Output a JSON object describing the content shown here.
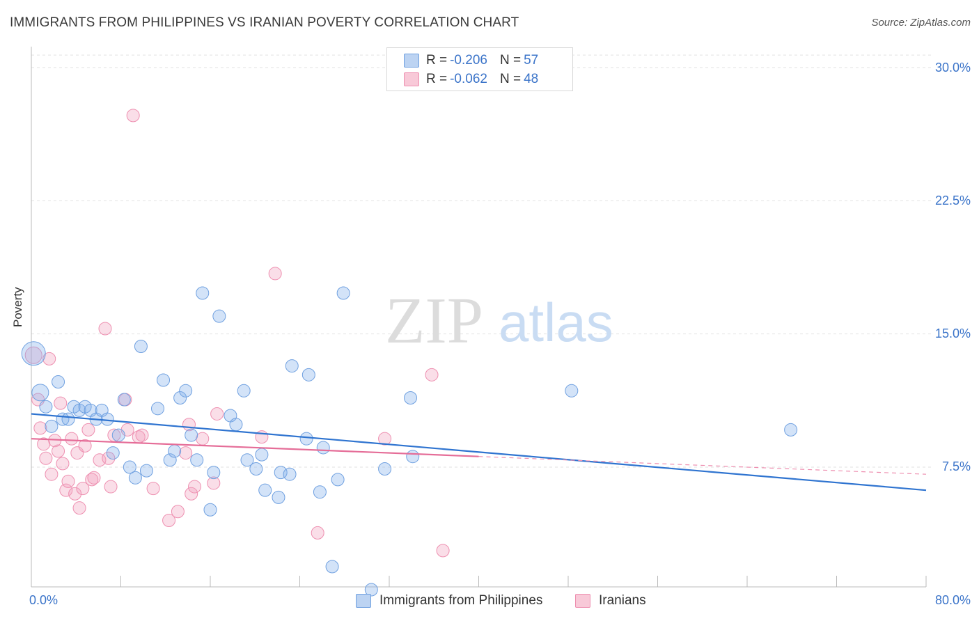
{
  "title": "IMMIGRANTS FROM PHILIPPINES VS IRANIAN POVERTY CORRELATION CHART",
  "source": "Source: ZipAtlas.com",
  "watermark": {
    "zip": "ZIP",
    "atlas": "atlas"
  },
  "legend": {
    "rows": [
      {
        "r_label": "R = ",
        "r_value": "-0.206",
        "n_label": "N = ",
        "n_value": "57",
        "color": "#6fa0e0"
      },
      {
        "r_label": "R = ",
        "r_value": "-0.062",
        "n_label": "N = ",
        "n_value": "48",
        "color": "#ee8fb0"
      }
    ]
  },
  "bottom_legend": [
    {
      "label": "Immigrants from Philippines",
      "color": "#6fa0e0"
    },
    {
      "label": "Iranians",
      "color": "#ee8fb0"
    }
  ],
  "y_tick_labels": [
    "30.0%",
    "22.5%",
    "15.0%",
    "7.5%"
  ],
  "x_tick_labels": {
    "min": "0.0%",
    "max": "80.0%"
  },
  "chart_data": {
    "type": "scatter",
    "title": "IMMIGRANTS FROM PHILIPPINES VS IRANIAN POVERTY CORRELATION CHART",
    "xlabel": "",
    "ylabel": "Poverty",
    "xlim": [
      0,
      80
    ],
    "ylim": [
      0,
      30.7
    ],
    "y_ticks": [
      7.5,
      15.0,
      22.5,
      30.0
    ],
    "grid": "horizontal dashed",
    "legend_placement": "top-center",
    "series": [
      {
        "name": "Immigrants from Philippines",
        "color": "#6fa0e0",
        "r": -0.206,
        "n": 57,
        "trend": {
          "x": [
            0,
            80
          ],
          "y": [
            10.5,
            6.2
          ]
        },
        "points": [
          [
            0.2,
            13.9,
            3
          ],
          [
            0.8,
            11.7,
            2
          ],
          [
            1.3,
            10.9,
            1
          ],
          [
            1.8,
            9.8,
            1
          ],
          [
            2.4,
            12.3,
            1
          ],
          [
            2.8,
            10.2,
            1
          ],
          [
            3.3,
            10.2,
            1
          ],
          [
            3.8,
            10.9,
            1
          ],
          [
            4.3,
            10.7,
            1
          ],
          [
            4.8,
            10.9,
            1
          ],
          [
            5.3,
            10.7,
            1
          ],
          [
            5.8,
            10.2,
            1
          ],
          [
            6.3,
            10.7,
            1
          ],
          [
            6.8,
            10.2,
            1
          ],
          [
            7.3,
            8.3,
            1
          ],
          [
            7.8,
            9.3,
            1
          ],
          [
            8.3,
            11.3,
            1
          ],
          [
            8.8,
            7.5,
            1
          ],
          [
            9.3,
            6.9,
            1
          ],
          [
            9.8,
            14.3,
            1
          ],
          [
            10.3,
            7.3,
            1
          ],
          [
            11.3,
            10.8,
            1
          ],
          [
            11.8,
            12.4,
            1
          ],
          [
            12.4,
            7.9,
            1
          ],
          [
            12.8,
            8.4,
            1
          ],
          [
            13.3,
            11.4,
            1
          ],
          [
            13.8,
            11.8,
            1
          ],
          [
            14.3,
            9.3,
            1
          ],
          [
            14.8,
            7.9,
            1
          ],
          [
            15.3,
            17.3,
            1
          ],
          [
            16.3,
            7.2,
            1
          ],
          [
            16.0,
            5.1,
            1
          ],
          [
            16.8,
            16.0,
            1
          ],
          [
            17.8,
            10.4,
            1
          ],
          [
            18.3,
            9.9,
            1
          ],
          [
            19.0,
            11.8,
            1
          ],
          [
            19.3,
            7.9,
            1
          ],
          [
            20.1,
            7.4,
            1
          ],
          [
            20.6,
            8.2,
            1
          ],
          [
            20.9,
            6.2,
            1
          ],
          [
            22.1,
            5.8,
            1
          ],
          [
            22.3,
            7.2,
            1
          ],
          [
            23.1,
            7.1,
            1
          ],
          [
            23.3,
            13.2,
            1
          ],
          [
            24.8,
            12.7,
            1
          ],
          [
            25.8,
            6.1,
            1
          ],
          [
            26.1,
            8.6,
            1
          ],
          [
            26.9,
            1.9,
            1
          ],
          [
            27.4,
            6.8,
            1
          ],
          [
            27.9,
            17.3,
            1
          ],
          [
            30.4,
            0.6,
            1
          ],
          [
            31.6,
            7.4,
            1
          ],
          [
            33.9,
            11.4,
            1
          ],
          [
            34.1,
            8.1,
            1
          ],
          [
            48.3,
            11.8,
            1
          ],
          [
            67.9,
            9.6,
            1
          ],
          [
            24.6,
            9.1,
            1
          ]
        ]
      },
      {
        "name": "Iranians",
        "color": "#ee8fb0",
        "r": -0.062,
        "n": 48,
        "trend": {
          "x": [
            0,
            40
          ],
          "y": [
            9.1,
            8.1
          ],
          "dashed_to": {
            "x": 80,
            "y": 7.1
          }
        },
        "points": [
          [
            0.2,
            13.8,
            2
          ],
          [
            0.6,
            11.3,
            1
          ],
          [
            0.8,
            9.7,
            1
          ],
          [
            1.1,
            8.8,
            1
          ],
          [
            1.3,
            8.0,
            1
          ],
          [
            1.6,
            13.6,
            1
          ],
          [
            1.8,
            7.1,
            1
          ],
          [
            2.1,
            9.0,
            1
          ],
          [
            2.4,
            8.4,
            1
          ],
          [
            2.6,
            11.1,
            1
          ],
          [
            2.8,
            7.7,
            1
          ],
          [
            3.1,
            6.2,
            1
          ],
          [
            3.3,
            6.7,
            1
          ],
          [
            3.6,
            9.1,
            1
          ],
          [
            3.9,
            6.0,
            1
          ],
          [
            4.1,
            8.3,
            1
          ],
          [
            4.3,
            5.2,
            1
          ],
          [
            4.6,
            6.3,
            1
          ],
          [
            4.8,
            8.7,
            1
          ],
          [
            5.1,
            9.6,
            1
          ],
          [
            5.4,
            6.8,
            1
          ],
          [
            5.6,
            6.9,
            1
          ],
          [
            6.1,
            7.9,
            1
          ],
          [
            6.6,
            15.3,
            1
          ],
          [
            6.9,
            8.0,
            1
          ],
          [
            7.1,
            6.4,
            1
          ],
          [
            7.4,
            9.3,
            1
          ],
          [
            8.6,
            9.6,
            1
          ],
          [
            9.1,
            27.3,
            1
          ],
          [
            8.4,
            11.3,
            1
          ],
          [
            9.6,
            9.2,
            1
          ],
          [
            9.9,
            9.3,
            1
          ],
          [
            10.9,
            6.3,
            1
          ],
          [
            12.3,
            4.5,
            1
          ],
          [
            13.1,
            5.0,
            1
          ],
          [
            13.8,
            8.3,
            1
          ],
          [
            14.1,
            9.9,
            1
          ],
          [
            14.3,
            6.0,
            1
          ],
          [
            14.6,
            6.4,
            1
          ],
          [
            15.3,
            9.1,
            1
          ],
          [
            16.3,
            6.6,
            1
          ],
          [
            16.6,
            10.5,
            1
          ],
          [
            20.6,
            9.2,
            1
          ],
          [
            21.8,
            18.4,
            1
          ],
          [
            25.6,
            3.8,
            1
          ],
          [
            31.6,
            9.1,
            1
          ],
          [
            35.8,
            12.7,
            1
          ],
          [
            36.8,
            2.8,
            1
          ]
        ]
      }
    ]
  }
}
